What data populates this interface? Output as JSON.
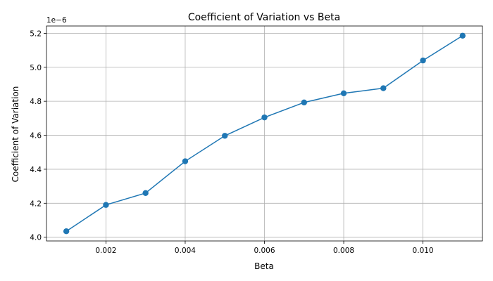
{
  "chart_data": {
    "type": "line",
    "title": "Coefficient of Variation vs Beta",
    "xlabel": "Beta",
    "ylabel": "Coefficient of Variation",
    "y_offset_label": "1e−6",
    "x": [
      0.001,
      0.002,
      0.003,
      0.004,
      0.005,
      0.006,
      0.007,
      0.008,
      0.009,
      0.01,
      0.011
    ],
    "series": [
      {
        "values": [
          4.035,
          4.19,
          4.26,
          4.447,
          4.597,
          4.705,
          4.793,
          4.847,
          4.877,
          5.04,
          5.186
        ],
        "color": "#1f77b4",
        "marker": "circle"
      }
    ],
    "xlim": [
      0.0005,
      0.0115
    ],
    "ylim": [
      3.978,
      5.243
    ],
    "xticks": [
      0.002,
      0.004,
      0.006,
      0.008,
      0.01
    ],
    "xtick_labels": [
      "0.002",
      "0.004",
      "0.006",
      "0.008",
      "0.010"
    ],
    "yticks": [
      4.0,
      4.2,
      4.4,
      4.6,
      4.8,
      5.0,
      5.2
    ],
    "ytick_labels": [
      "4.0",
      "4.2",
      "4.4",
      "4.6",
      "4.8",
      "5.0",
      "5.2"
    ],
    "grid": true,
    "legend": "none"
  }
}
